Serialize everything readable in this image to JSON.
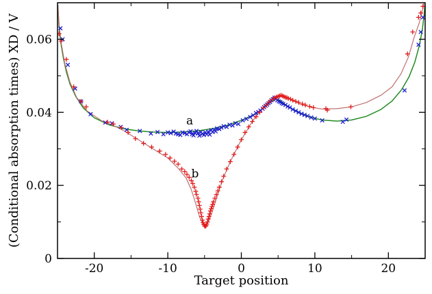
{
  "chart_data": {
    "type": "scatter",
    "title": "",
    "xlabel": "Target position",
    "ylabel": "(Conditional absorption times)  XD / V",
    "xlim": [
      -25,
      25
    ],
    "ylim": [
      0,
      0.07
    ],
    "x_ticks": [
      -20,
      -10,
      0,
      10,
      20
    ],
    "y_ticks": [
      0,
      0.02,
      0.04,
      0.06
    ],
    "x_tick_labels": [
      "-20",
      "-10",
      "0",
      "10",
      "20"
    ],
    "y_tick_labels": [
      "0",
      "0.02",
      "0.04",
      "0.06"
    ],
    "grid": false,
    "legend": "none",
    "annotations": [
      {
        "text": "a",
        "x": -7.5,
        "y": 0.0367
      },
      {
        "text": "b",
        "x": -6.8,
        "y": 0.0222
      }
    ],
    "series": [
      {
        "kind": "line",
        "color": "#228b22",
        "points": [
          [
            -24.95,
            0.0693
          ],
          [
            -24.85,
            0.0653
          ],
          [
            -24.7,
            0.0616
          ],
          [
            -24.5,
            0.0584
          ],
          [
            -24.2,
            0.0548
          ],
          [
            -23.8,
            0.0511
          ],
          [
            -23.3,
            0.0477
          ],
          [
            -22.5,
            0.0443
          ],
          [
            -21.5,
            0.0412
          ],
          [
            -20,
            0.0385
          ],
          [
            -18,
            0.0366
          ],
          [
            -16,
            0.0355
          ],
          [
            -14,
            0.0349
          ],
          [
            -12,
            0.0346
          ],
          [
            -10,
            0.0345
          ],
          [
            -8,
            0.0346
          ],
          [
            -6,
            0.0349
          ],
          [
            -4,
            0.0355
          ],
          [
            -2,
            0.0364
          ],
          [
            0,
            0.0378
          ],
          [
            2,
            0.0396
          ],
          [
            3,
            0.0412
          ],
          [
            4,
            0.0428
          ],
          [
            4.7,
            0.0436
          ],
          [
            5.3,
            0.0432
          ],
          [
            6,
            0.0421
          ],
          [
            7,
            0.0408
          ],
          [
            8,
            0.0397
          ],
          [
            9.5,
            0.0386
          ],
          [
            11,
            0.0379
          ],
          [
            13,
            0.0376
          ],
          [
            15,
            0.0379
          ],
          [
            17,
            0.0389
          ],
          [
            19,
            0.0408
          ],
          [
            20.5,
            0.0431
          ],
          [
            21.8,
            0.0462
          ],
          [
            22.8,
            0.0497
          ],
          [
            23.6,
            0.0538
          ],
          [
            24.2,
            0.0582
          ],
          [
            24.6,
            0.0624
          ],
          [
            24.85,
            0.0665
          ],
          [
            24.97,
            0.0696
          ]
        ]
      },
      {
        "kind": "line",
        "color": "#c07070",
        "points": [
          [
            -24.95,
            0.0695
          ],
          [
            -24.8,
            0.0646
          ],
          [
            -24.5,
            0.059
          ],
          [
            -24,
            0.0533
          ],
          [
            -23.3,
            0.0482
          ],
          [
            -22.4,
            0.0441
          ],
          [
            -21,
            0.0404
          ],
          [
            -19,
            0.0377
          ],
          [
            -17.5,
            0.0365
          ],
          [
            -16,
            0.035
          ],
          [
            -14,
            0.0325
          ],
          [
            -12,
            0.03
          ],
          [
            -10,
            0.0275
          ],
          [
            -8.5,
            0.0245
          ],
          [
            -7.5,
            0.022
          ],
          [
            -6.8,
            0.0188
          ],
          [
            -6.2,
            0.015
          ],
          [
            -5.7,
            0.0115
          ],
          [
            -5.3,
            0.0096
          ],
          [
            -5.0,
            0.0088
          ],
          [
            -4.7,
            0.0092
          ],
          [
            -4.3,
            0.0108
          ],
          [
            -3.8,
            0.0138
          ],
          [
            -3.3,
            0.017
          ],
          [
            -2.5,
            0.0218
          ],
          [
            -1.5,
            0.0265
          ],
          [
            0,
            0.0325
          ],
          [
            1.5,
            0.0375
          ],
          [
            3,
            0.0415
          ],
          [
            4,
            0.0435
          ],
          [
            5,
            0.0445
          ],
          [
            6,
            0.0442
          ],
          [
            7,
            0.0432
          ],
          [
            8,
            0.0423
          ],
          [
            9.5,
            0.0414
          ],
          [
            11,
            0.0409
          ],
          [
            13,
            0.041
          ],
          [
            15,
            0.0415
          ],
          [
            17,
            0.0427
          ],
          [
            19,
            0.0447
          ],
          [
            20.5,
            0.047
          ],
          [
            21.7,
            0.0505
          ],
          [
            22.7,
            0.055
          ],
          [
            23.5,
            0.0605
          ],
          [
            24.2,
            0.0645
          ],
          [
            24.6,
            0.0678
          ],
          [
            24.9,
            0.0705
          ]
        ]
      },
      {
        "kind": "marker",
        "marker": "x",
        "color": "#1c1ccc",
        "points": [
          [
            -24.6,
            0.063
          ],
          [
            -24.3,
            0.06
          ],
          [
            -23.6,
            0.053
          ],
          [
            -22.6,
            0.0465
          ],
          [
            -21.8,
            0.043
          ],
          [
            -20.5,
            0.0395
          ],
          [
            -18.5,
            0.0372
          ],
          [
            -17.6,
            0.037
          ],
          [
            -16.4,
            0.036
          ],
          [
            -15.6,
            0.0352
          ],
          [
            -13.8,
            0.0349
          ],
          [
            -12.3,
            0.0342
          ],
          [
            -11.4,
            0.0346
          ],
          [
            -10.6,
            0.034
          ],
          [
            -10.0,
            0.0345
          ],
          [
            -9.6,
            0.0343
          ],
          [
            -9.2,
            0.0347
          ],
          [
            -8.9,
            0.0342
          ],
          [
            -8.6,
            0.034
          ],
          [
            -8.3,
            0.0338
          ],
          [
            -8.0,
            0.0345
          ],
          [
            -7.7,
            0.0343
          ],
          [
            -7.4,
            0.034
          ],
          [
            -7.1,
            0.0345
          ],
          [
            -6.9,
            0.0348
          ],
          [
            -6.7,
            0.034
          ],
          [
            -6.5,
            0.0337
          ],
          [
            -6.3,
            0.0344
          ],
          [
            -6.1,
            0.0349
          ],
          [
            -5.9,
            0.0342
          ],
          [
            -5.7,
            0.0336
          ],
          [
            -5.5,
            0.0346
          ],
          [
            -5.3,
            0.0341
          ],
          [
            -5.1,
            0.0338
          ],
          [
            -4.9,
            0.0345
          ],
          [
            -4.7,
            0.034
          ],
          [
            -4.5,
            0.0347
          ],
          [
            -4.3,
            0.0339
          ],
          [
            -4.1,
            0.0351
          ],
          [
            -3.9,
            0.0346
          ],
          [
            -3.7,
            0.0352
          ],
          [
            -3.5,
            0.0348
          ],
          [
            -3.3,
            0.0356
          ],
          [
            -3.0,
            0.0354
          ],
          [
            -2.7,
            0.0358
          ],
          [
            -2.4,
            0.0362
          ],
          [
            -2.0,
            0.036
          ],
          [
            -1.6,
            0.0366
          ],
          [
            -1.2,
            0.0364
          ],
          [
            -0.8,
            0.037
          ],
          [
            -0.4,
            0.0368
          ],
          [
            0.2,
            0.0378
          ],
          [
            0.7,
            0.0382
          ],
          [
            1.2,
            0.0387
          ],
          [
            1.6,
            0.0392
          ],
          [
            2.0,
            0.0398
          ],
          [
            2.3,
            0.0401
          ],
          [
            2.6,
            0.0405
          ],
          [
            2.9,
            0.041
          ],
          [
            3.1,
            0.0414
          ],
          [
            3.3,
            0.0418
          ],
          [
            3.5,
            0.0421
          ],
          [
            3.7,
            0.0425
          ],
          [
            3.9,
            0.0428
          ],
          [
            4.1,
            0.0433
          ],
          [
            4.3,
            0.0436
          ],
          [
            4.5,
            0.044
          ],
          [
            4.7,
            0.0437
          ],
          [
            4.9,
            0.0433
          ],
          [
            5.1,
            0.043
          ],
          [
            5.3,
            0.0428
          ],
          [
            5.5,
            0.0425
          ],
          [
            5.7,
            0.0423
          ],
          [
            6.0,
            0.042
          ],
          [
            6.3,
            0.0416
          ],
          [
            6.6,
            0.0413
          ],
          [
            7.0,
            0.0408
          ],
          [
            7.4,
            0.0404
          ],
          [
            7.8,
            0.04
          ],
          [
            8.2,
            0.0396
          ],
          [
            8.6,
            0.0393
          ],
          [
            9.0,
            0.039
          ],
          [
            9.5,
            0.0386
          ],
          [
            10.0,
            0.0383
          ],
          [
            11.0,
            0.0378
          ],
          [
            13.8,
            0.0374
          ],
          [
            14.3,
            0.038
          ],
          [
            22.2,
            0.046
          ],
          [
            24.1,
            0.0585
          ],
          [
            24.4,
            0.062
          ],
          [
            24.7,
            0.066
          ]
        ]
      },
      {
        "kind": "marker",
        "marker": "+",
        "color": "#e21b1b",
        "points": [
          [
            -24.8,
            0.0615
          ],
          [
            -24.5,
            0.0595
          ],
          [
            -23.8,
            0.0545
          ],
          [
            -22.8,
            0.047
          ],
          [
            -21.8,
            0.043
          ],
          [
            -21.1,
            0.0415
          ],
          [
            -18.2,
            0.0373
          ],
          [
            -17.4,
            0.0368
          ],
          [
            -16.3,
            0.0358
          ],
          [
            -15.4,
            0.0345
          ],
          [
            -14.4,
            0.0328
          ],
          [
            -13.3,
            0.0315
          ],
          [
            -12.2,
            0.0305
          ],
          [
            -11.1,
            0.0294
          ],
          [
            -10.3,
            0.0285
          ],
          [
            -9.7,
            0.0275
          ],
          [
            -9.1,
            0.0266
          ],
          [
            -8.6,
            0.0258
          ],
          [
            -8.1,
            0.0245
          ],
          [
            -7.7,
            0.0238
          ],
          [
            -7.4,
            0.023
          ],
          [
            -7.1,
            0.0222
          ],
          [
            -6.8,
            0.0213
          ],
          [
            -6.6,
            0.0205
          ],
          [
            -6.4,
            0.0195
          ],
          [
            -6.2,
            0.0184
          ],
          [
            -6.1,
            0.0175
          ],
          [
            -5.9,
            0.0165
          ],
          [
            -5.8,
            0.0155
          ],
          [
            -5.7,
            0.0145
          ],
          [
            -5.6,
            0.0135
          ],
          [
            -5.5,
            0.0125
          ],
          [
            -5.4,
            0.0115
          ],
          [
            -5.3,
            0.0105
          ],
          [
            -5.2,
            0.0098
          ],
          [
            -5.1,
            0.0093
          ],
          [
            -5.0,
            0.0089
          ],
          [
            -4.9,
            0.0088
          ],
          [
            -4.8,
            0.009
          ],
          [
            -4.7,
            0.0094
          ],
          [
            -4.6,
            0.01
          ],
          [
            -4.5,
            0.0108
          ],
          [
            -4.4,
            0.0115
          ],
          [
            -4.3,
            0.0122
          ],
          [
            -4.2,
            0.013
          ],
          [
            -4.1,
            0.0136
          ],
          [
            -4.0,
            0.0142
          ],
          [
            -3.9,
            0.0148
          ],
          [
            -3.8,
            0.0155
          ],
          [
            -3.6,
            0.0165
          ],
          [
            -3.4,
            0.0175
          ],
          [
            -3.2,
            0.0185
          ],
          [
            -3.0,
            0.0195
          ],
          [
            -2.7,
            0.021
          ],
          [
            -2.4,
            0.0225
          ],
          [
            -2.0,
            0.0245
          ],
          [
            -1.5,
            0.0265
          ],
          [
            -1.0,
            0.0285
          ],
          [
            -0.5,
            0.0305
          ],
          [
            0.0,
            0.0325
          ],
          [
            0.5,
            0.0345
          ],
          [
            1.0,
            0.036
          ],
          [
            1.5,
            0.0375
          ],
          [
            2.0,
            0.0388
          ],
          [
            2.5,
            0.04
          ],
          [
            3.0,
            0.0412
          ],
          [
            3.4,
            0.042
          ],
          [
            3.8,
            0.0428
          ],
          [
            4.2,
            0.0435
          ],
          [
            4.5,
            0.044
          ],
          [
            4.8,
            0.0442
          ],
          [
            5.0,
            0.0443
          ],
          [
            5.2,
            0.0445
          ],
          [
            5.4,
            0.0447
          ],
          [
            5.6,
            0.0445
          ],
          [
            5.8,
            0.0443
          ],
          [
            6.0,
            0.0441
          ],
          [
            6.2,
            0.044
          ],
          [
            6.4,
            0.0438
          ],
          [
            6.7,
            0.0436
          ],
          [
            7.0,
            0.0433
          ],
          [
            7.4,
            0.043
          ],
          [
            7.8,
            0.0427
          ],
          [
            8.3,
            0.0423
          ],
          [
            8.7,
            0.042
          ],
          [
            9.3,
            0.0416
          ],
          [
            9.8,
            0.0413
          ],
          [
            11.5,
            0.041
          ],
          [
            11.7,
            0.0406
          ],
          [
            14.9,
            0.0415
          ],
          [
            22.6,
            0.056
          ],
          [
            23.3,
            0.062
          ],
          [
            24.1,
            0.066
          ],
          [
            24.4,
            0.0672
          ],
          [
            24.7,
            0.069
          ]
        ]
      }
    ]
  }
}
